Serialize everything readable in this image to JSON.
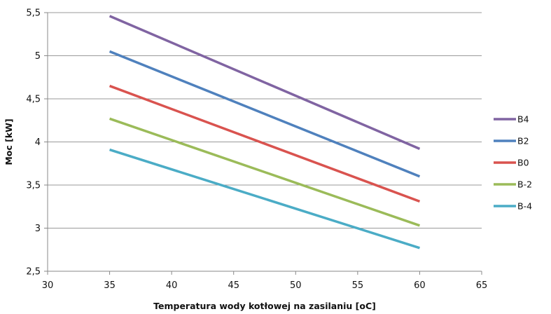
{
  "chart_data": {
    "type": "line",
    "title": "",
    "xlabel": "Temperatura wody kotłowej na zasilaniu [oC]",
    "ylabel": "Moc [kW]",
    "xlim": [
      30,
      65
    ],
    "ylim": [
      2.5,
      5.5
    ],
    "xticks": [
      "30",
      "35",
      "40",
      "45",
      "50",
      "55",
      "60",
      "65"
    ],
    "yticks": [
      "2,5",
      "3",
      "3,5",
      "4",
      "4,5",
      "5",
      "5,5"
    ],
    "grid": "horizontal",
    "legend_position": "right",
    "series": [
      {
        "name": "B4",
        "color": "#8064a2",
        "x": [
          35,
          60
        ],
        "y": [
          5.46,
          3.92
        ]
      },
      {
        "name": "B2",
        "color": "#4f81bd",
        "x": [
          35,
          60
        ],
        "y": [
          5.05,
          3.6
        ]
      },
      {
        "name": "B0",
        "color": "#d9534f",
        "x": [
          35,
          60
        ],
        "y": [
          4.65,
          3.31
        ]
      },
      {
        "name": "B-2",
        "color": "#9bbb59",
        "x": [
          35,
          60
        ],
        "y": [
          4.27,
          3.03
        ]
      },
      {
        "name": "B-4",
        "color": "#4bacc6",
        "x": [
          35,
          60
        ],
        "y": [
          3.91,
          2.77
        ]
      }
    ]
  }
}
